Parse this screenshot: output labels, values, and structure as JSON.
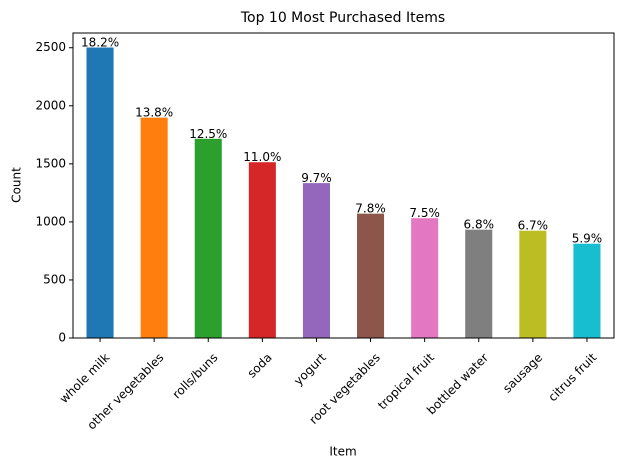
{
  "chart_data": {
    "type": "bar",
    "title": "Top 10 Most Purchased Items",
    "x_label": "Item",
    "y_label": "Count",
    "categories": [
      "whole milk",
      "other vegetables",
      "rolls/buns",
      "soda",
      "yogurt",
      "root vegetables",
      "tropical fruit",
      "bottled water",
      "sausage",
      "citrus fruit"
    ],
    "values": [
      2502,
      1898,
      1716,
      1514,
      1334,
      1071,
      1032,
      933,
      924,
      812
    ],
    "annotations": [
      "18.2%",
      "13.8%",
      "12.5%",
      "11.0%",
      "9.7%",
      "7.8%",
      "7.5%",
      "6.8%",
      "6.7%",
      "5.9%"
    ],
    "colors": [
      "#1f77b4",
      "#ff7f0e",
      "#2ca02c",
      "#d62728",
      "#9467bd",
      "#8c564b",
      "#e377c2",
      "#7f7f7f",
      "#bcbd22",
      "#17becf"
    ],
    "ylim": [
      0,
      2627
    ],
    "yticks": [
      0,
      500,
      1000,
      1500,
      2000,
      2500
    ],
    "grid": false
  }
}
